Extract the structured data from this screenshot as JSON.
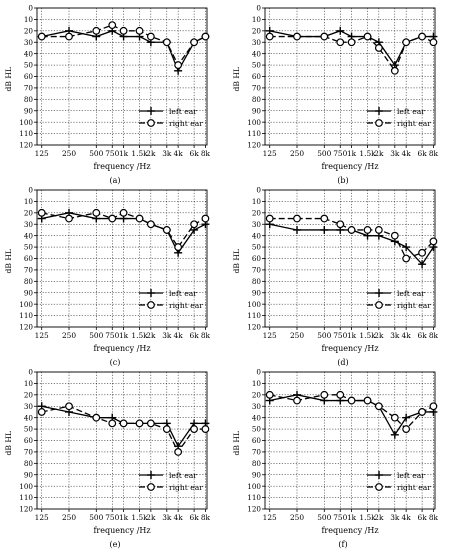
{
  "chart_data": [
    {
      "type": "line",
      "panel_label": "(a)",
      "x": [
        "125",
        "250",
        "500",
        "750",
        "1k",
        "1.5k",
        "2k",
        "3k",
        "4k",
        "6k",
        "8k"
      ],
      "xlabel": "frequency /Hz",
      "ylabel": "dB HL",
      "ylim": [
        0,
        120
      ],
      "yticks": [
        0,
        10,
        20,
        30,
        40,
        50,
        60,
        70,
        80,
        90,
        100,
        110,
        120
      ],
      "y_inverted": true,
      "grid": true,
      "legend_position": "bottom-right",
      "series": [
        {
          "name": "left ear",
          "marker": "plus",
          "dash": "solid",
          "values": [
            25,
            20,
            25,
            20,
            25,
            25,
            30,
            30,
            55,
            30,
            25
          ]
        },
        {
          "name": "right ear",
          "marker": "circle",
          "dash": "dashed",
          "values": [
            25,
            25,
            20,
            15,
            20,
            20,
            25,
            30,
            50,
            30,
            25
          ]
        }
      ]
    },
    {
      "type": "line",
      "panel_label": "(b)",
      "x": [
        "125",
        "250",
        "500",
        "750",
        "1k",
        "1.5k",
        "2k",
        "3k",
        "4k",
        "6k",
        "8k"
      ],
      "xlabel": "frequency /Hz",
      "ylabel": "dB HL",
      "ylim": [
        0,
        120
      ],
      "yticks": [
        0,
        10,
        20,
        30,
        40,
        50,
        60,
        70,
        80,
        90,
        100,
        110,
        120
      ],
      "y_inverted": true,
      "grid": true,
      "legend_position": "bottom-right",
      "series": [
        {
          "name": "left ear",
          "marker": "plus",
          "dash": "solid",
          "values": [
            20,
            25,
            25,
            20,
            25,
            25,
            30,
            50,
            30,
            25,
            25
          ]
        },
        {
          "name": "right ear",
          "marker": "circle",
          "dash": "dashed",
          "values": [
            25,
            25,
            25,
            30,
            30,
            25,
            35,
            55,
            30,
            25,
            30
          ]
        }
      ]
    },
    {
      "type": "line",
      "panel_label": "(c)",
      "x": [
        "125",
        "250",
        "500",
        "750",
        "1k",
        "1.5k",
        "2k",
        "3k",
        "4k",
        "6k",
        "8k"
      ],
      "xlabel": "frequency /Hz",
      "ylabel": "dB HL",
      "ylim": [
        0,
        120
      ],
      "yticks": [
        0,
        10,
        20,
        30,
        40,
        50,
        60,
        70,
        80,
        90,
        100,
        110,
        120
      ],
      "y_inverted": true,
      "grid": true,
      "legend_position": "bottom-right",
      "series": [
        {
          "name": "left ear",
          "marker": "plus",
          "dash": "solid",
          "values": [
            25,
            20,
            25,
            25,
            25,
            25,
            30,
            35,
            55,
            35,
            30
          ]
        },
        {
          "name": "right ear",
          "marker": "circle",
          "dash": "dashed",
          "values": [
            20,
            25,
            20,
            25,
            20,
            25,
            30,
            35,
            50,
            30,
            25
          ]
        }
      ]
    },
    {
      "type": "line",
      "panel_label": "(d)",
      "x": [
        "125",
        "250",
        "500",
        "750",
        "1k",
        "1.5k",
        "2k",
        "3k",
        "4k",
        "6k",
        "8k"
      ],
      "xlabel": "frequency /Hz",
      "ylabel": "dB HL",
      "ylim": [
        0,
        120
      ],
      "yticks": [
        0,
        10,
        20,
        30,
        40,
        50,
        60,
        70,
        80,
        90,
        100,
        110,
        120
      ],
      "y_inverted": true,
      "grid": true,
      "legend_position": "bottom-right",
      "series": [
        {
          "name": "left ear",
          "marker": "plus",
          "dash": "solid",
          "values": [
            30,
            35,
            35,
            35,
            35,
            40,
            40,
            45,
            50,
            65,
            50
          ]
        },
        {
          "name": "right ear",
          "marker": "circle",
          "dash": "dashed",
          "values": [
            25,
            25,
            25,
            30,
            35,
            35,
            35,
            40,
            60,
            55,
            45
          ]
        }
      ]
    },
    {
      "type": "line",
      "panel_label": "(e)",
      "x": [
        "125",
        "250",
        "500",
        "750",
        "1k",
        "1.5k",
        "2k",
        "3k",
        "4k",
        "6k",
        "8k"
      ],
      "xlabel": "frequency /Hz",
      "ylabel": "dB HL",
      "ylim": [
        0,
        120
      ],
      "yticks": [
        0,
        10,
        20,
        30,
        40,
        50,
        60,
        70,
        80,
        90,
        100,
        110,
        120
      ],
      "y_inverted": true,
      "grid": true,
      "legend_position": "bottom-right",
      "series": [
        {
          "name": "left ear",
          "marker": "plus",
          "dash": "solid",
          "values": [
            30,
            35,
            40,
            40,
            45,
            45,
            45,
            45,
            65,
            45,
            45
          ]
        },
        {
          "name": "right ear",
          "marker": "circle",
          "dash": "dashed",
          "values": [
            35,
            30,
            40,
            45,
            45,
            45,
            45,
            50,
            70,
            50,
            50
          ]
        }
      ]
    },
    {
      "type": "line",
      "panel_label": "(f)",
      "x": [
        "125",
        "250",
        "500",
        "750",
        "1k",
        "1.5k",
        "2k",
        "3k",
        "4k",
        "6k",
        "8k"
      ],
      "xlabel": "frequency /Hz",
      "ylabel": "dB HL",
      "ylim": [
        0,
        120
      ],
      "yticks": [
        0,
        10,
        20,
        30,
        40,
        50,
        60,
        70,
        80,
        90,
        100,
        110,
        120
      ],
      "y_inverted": true,
      "grid": true,
      "legend_position": "bottom-right",
      "series": [
        {
          "name": "left ear",
          "marker": "plus",
          "dash": "solid",
          "values": [
            25,
            20,
            25,
            25,
            25,
            25,
            30,
            55,
            40,
            35,
            35
          ]
        },
        {
          "name": "right ear",
          "marker": "circle",
          "dash": "dashed",
          "values": [
            20,
            25,
            20,
            20,
            25,
            25,
            30,
            40,
            50,
            35,
            30
          ]
        }
      ]
    }
  ],
  "colors": {
    "line": "#000000",
    "grid": "#000000",
    "background": "#ffffff"
  }
}
